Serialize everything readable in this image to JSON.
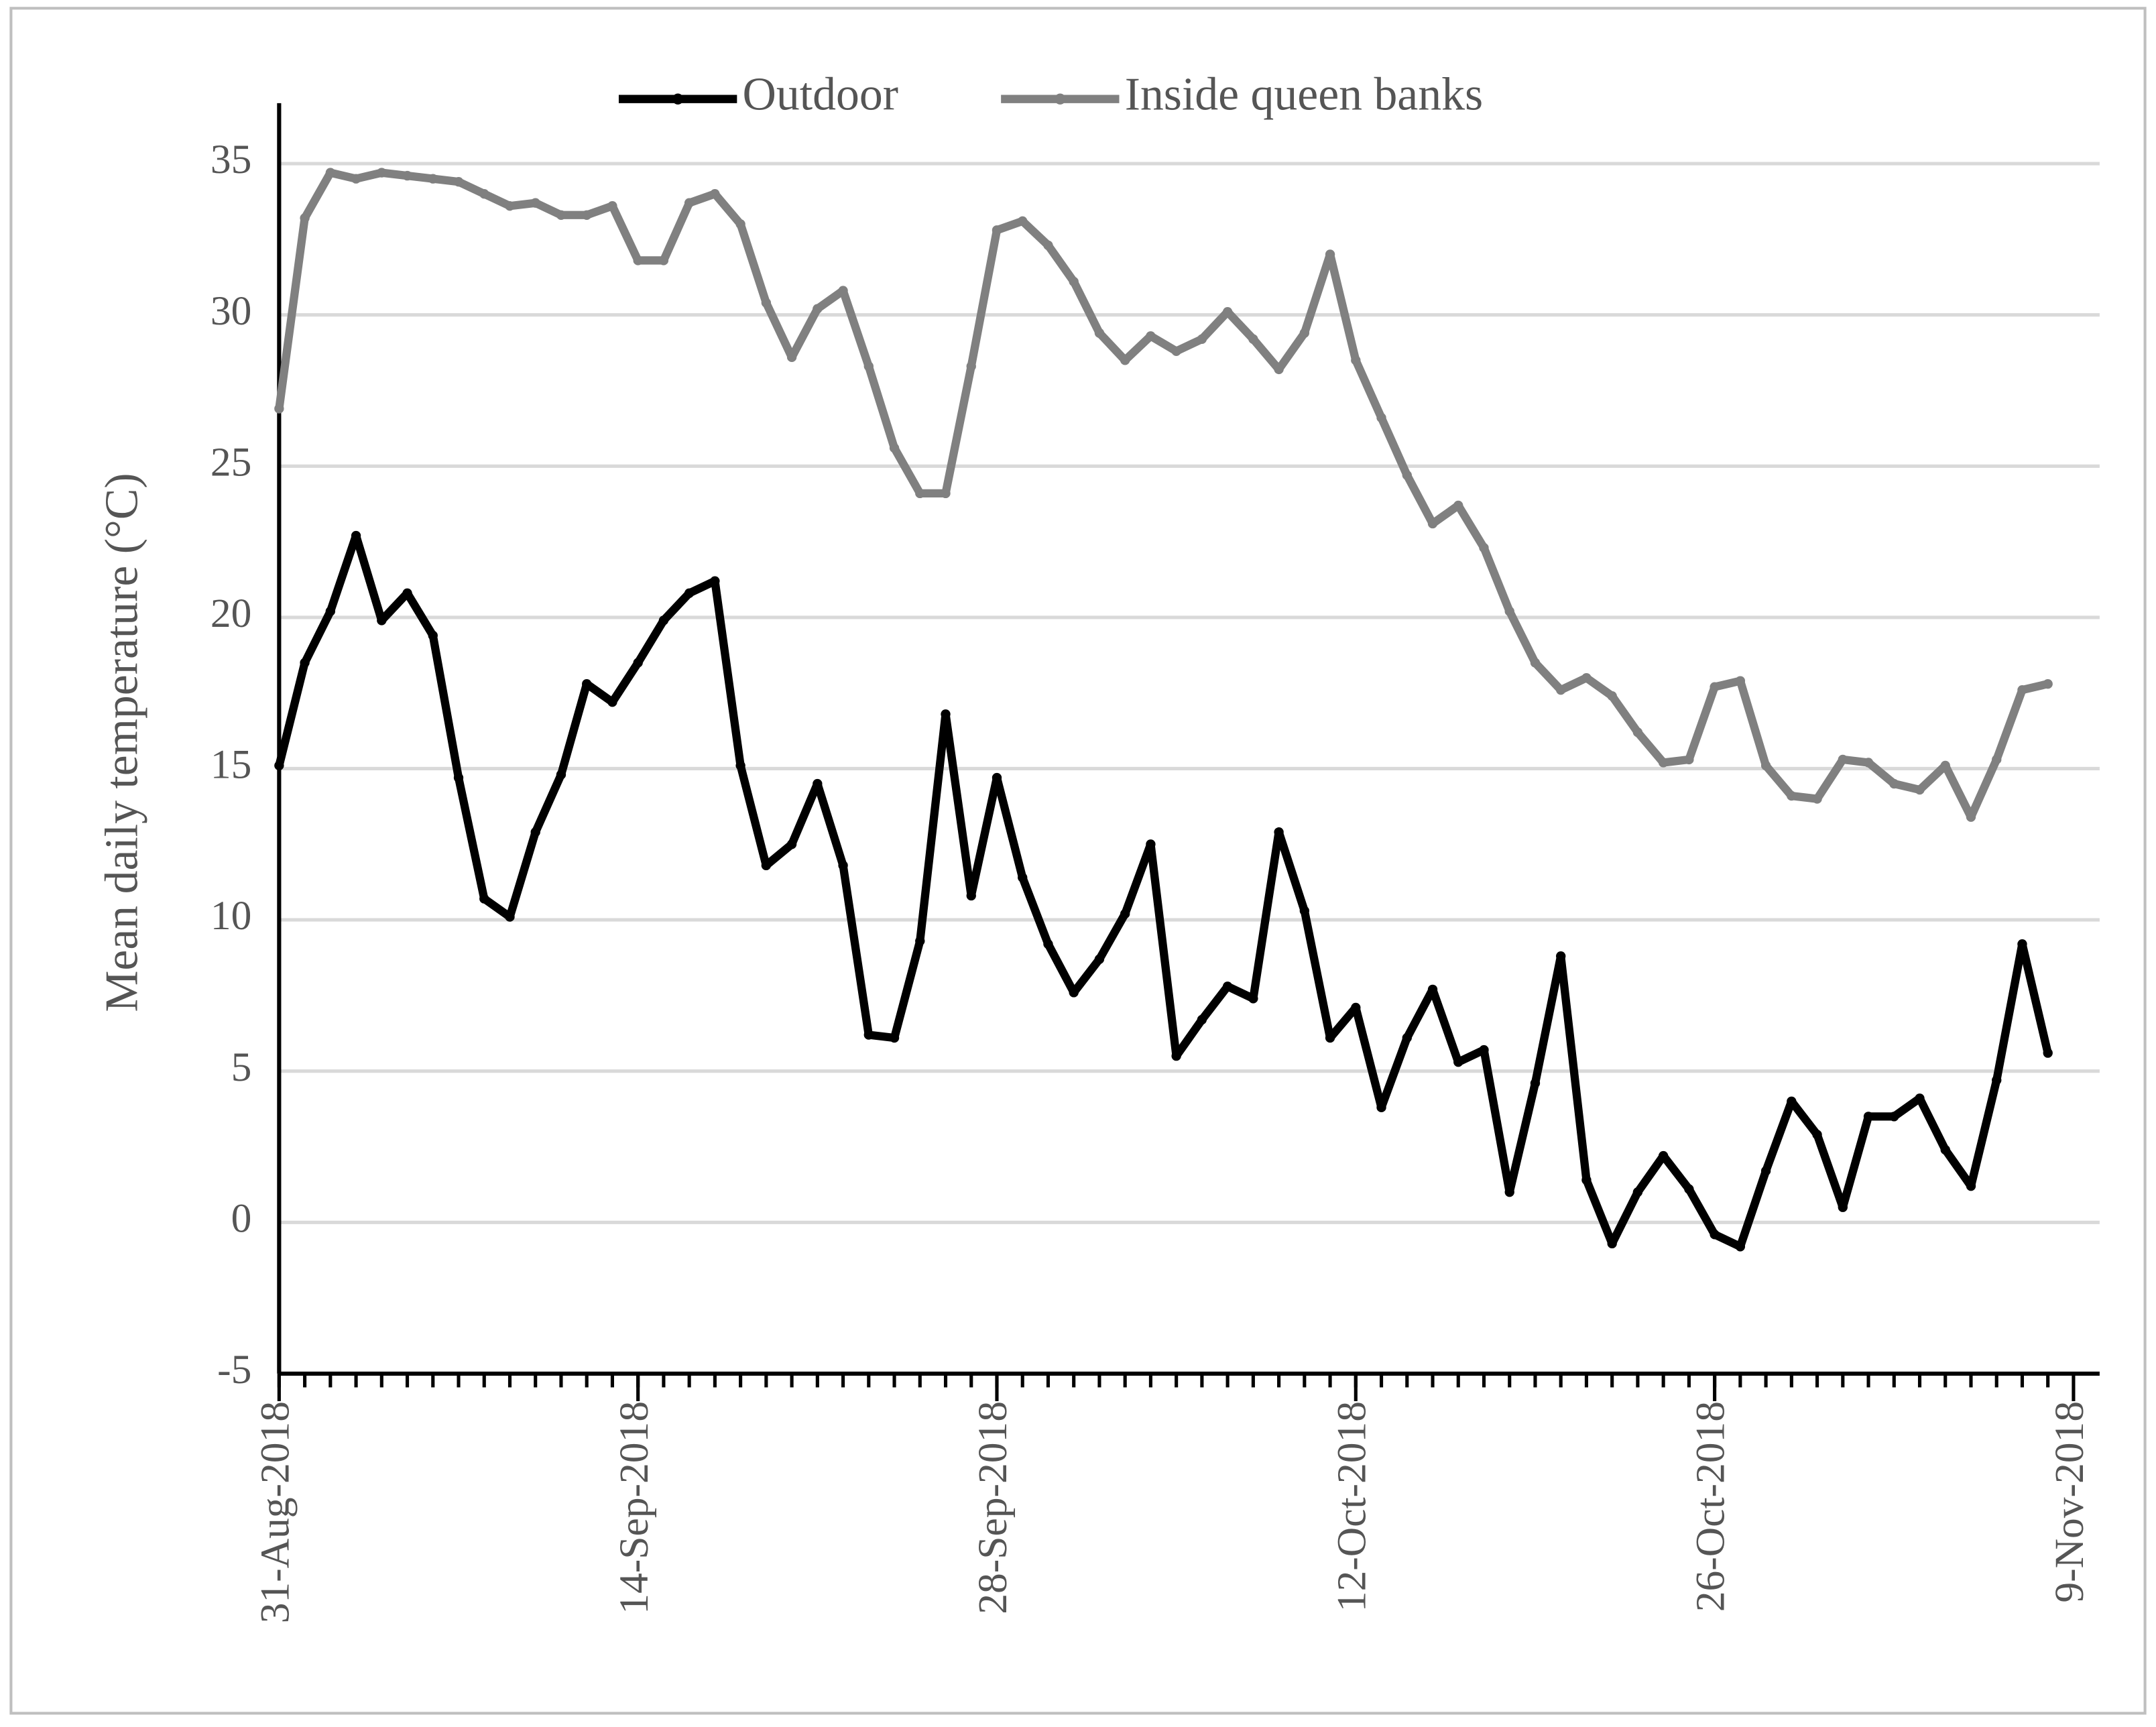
{
  "chart_data": {
    "type": "line",
    "y_label": "Mean daily temperature (°C)",
    "x": [
      "2018-08-31",
      "2018-09-01",
      "2018-09-02",
      "2018-09-03",
      "2018-09-04",
      "2018-09-05",
      "2018-09-06",
      "2018-09-07",
      "2018-09-08",
      "2018-09-09",
      "2018-09-10",
      "2018-09-11",
      "2018-09-12",
      "2018-09-13",
      "2018-09-14",
      "2018-09-15",
      "2018-09-16",
      "2018-09-17",
      "2018-09-18",
      "2018-09-19",
      "2018-09-20",
      "2018-09-21",
      "2018-09-22",
      "2018-09-23",
      "2018-09-24",
      "2018-09-25",
      "2018-09-26",
      "2018-09-27",
      "2018-09-28",
      "2018-09-29",
      "2018-09-30",
      "2018-10-01",
      "2018-10-02",
      "2018-10-03",
      "2018-10-04",
      "2018-10-05",
      "2018-10-06",
      "2018-10-07",
      "2018-10-08",
      "2018-10-09",
      "2018-10-10",
      "2018-10-11",
      "2018-10-12",
      "2018-10-13",
      "2018-10-14",
      "2018-10-15",
      "2018-10-16",
      "2018-10-17",
      "2018-10-18",
      "2018-10-19",
      "2018-10-20",
      "2018-10-21",
      "2018-10-22",
      "2018-10-23",
      "2018-10-24",
      "2018-10-25",
      "2018-10-26",
      "2018-10-27",
      "2018-10-28",
      "2018-10-29",
      "2018-10-30",
      "2018-10-31",
      "2018-11-01",
      "2018-11-02",
      "2018-11-03",
      "2018-11-04",
      "2018-11-05",
      "2018-11-06",
      "2018-11-07",
      "2018-11-08"
    ],
    "series": [
      {
        "name": "Outdoor",
        "color": "#000000",
        "values": [
          15.1,
          18.5,
          20.2,
          22.7,
          19.9,
          20.8,
          19.4,
          14.7,
          10.7,
          10.1,
          12.9,
          14.8,
          17.8,
          17.2,
          18.5,
          19.9,
          20.8,
          21.2,
          15.1,
          11.8,
          12.5,
          14.5,
          11.8,
          6.2,
          6.1,
          9.3,
          16.8,
          10.8,
          14.7,
          11.4,
          9.2,
          7.6,
          8.7,
          10.2,
          12.5,
          5.5,
          6.7,
          7.8,
          7.4,
          12.9,
          10.3,
          6.1,
          7.1,
          3.8,
          6.1,
          7.7,
          5.3,
          5.7,
          1.0,
          4.6,
          8.8,
          1.4,
          -0.7,
          1.0,
          2.2,
          1.1,
          -0.4,
          -0.8,
          1.7,
          4.0,
          2.9,
          0.5,
          3.5,
          3.5,
          4.1,
          2.4,
          1.2,
          4.7,
          9.2,
          5.6
        ]
      },
      {
        "name": "Inside queen banks",
        "color": "#808080",
        "values": [
          26.9,
          33.2,
          34.7,
          34.5,
          34.7,
          34.6,
          34.5,
          34.4,
          34.0,
          33.6,
          33.7,
          33.3,
          33.3,
          33.6,
          31.8,
          31.8,
          33.7,
          34.0,
          33.0,
          30.4,
          28.6,
          30.2,
          30.8,
          28.3,
          25.6,
          24.1,
          24.1,
          28.3,
          32.8,
          33.1,
          32.3,
          31.1,
          29.4,
          28.5,
          29.3,
          28.8,
          29.2,
          30.1,
          29.2,
          28.2,
          29.4,
          32.0,
          28.5,
          26.6,
          24.7,
          23.1,
          23.7,
          22.3,
          20.2,
          18.5,
          17.6,
          18.0,
          17.4,
          16.2,
          15.2,
          15.3,
          17.7,
          17.9,
          15.1,
          14.1,
          14.0,
          15.3,
          15.2,
          14.5,
          14.3,
          15.1,
          13.4,
          15.3,
          17.6,
          17.8
        ]
      }
    ],
    "xlim": [
      "2018-08-31",
      "2018-11-09"
    ],
    "xticks": [
      {
        "value": "2018-08-31",
        "label": "31-Aug-2018"
      },
      {
        "value": "2018-09-14",
        "label": "14-Sep-2018"
      },
      {
        "value": "2018-09-28",
        "label": "28-Sep-2018"
      },
      {
        "value": "2018-10-12",
        "label": "12-Oct-2018"
      },
      {
        "value": "2018-10-26",
        "label": "26-Oct-2018"
      },
      {
        "value": "2018-11-09",
        "label": "9-Nov-2018"
      }
    ],
    "ylim": [
      -5,
      37
    ],
    "yticks": [
      -5,
      0,
      5,
      10,
      15,
      20,
      25,
      30,
      35
    ],
    "grid": true,
    "legend": "top"
  }
}
